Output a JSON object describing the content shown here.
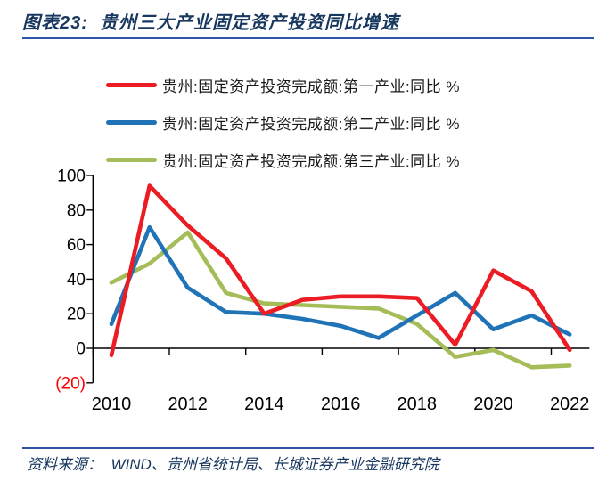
{
  "header": {
    "title": "图表23:  贵州三大产业固定资产投资同比增速"
  },
  "chart_data": {
    "type": "line",
    "title": "贵州三大产业固定资产投资同比增速",
    "x": [
      2010,
      2011,
      2012,
      2013,
      2014,
      2015,
      2016,
      2017,
      2018,
      2019,
      2020,
      2021,
      2022
    ],
    "x_tick_labels": [
      "2010",
      "2012",
      "2014",
      "2016",
      "2018",
      "2020",
      "2022"
    ],
    "ylim": [
      -20,
      100
    ],
    "y_ticks": [
      {
        "label": "100",
        "value": 100,
        "color": "#000000"
      },
      {
        "label": "80",
        "value": 80,
        "color": "#000000"
      },
      {
        "label": "60",
        "value": 60,
        "color": "#000000"
      },
      {
        "label": "40",
        "value": 40,
        "color": "#000000"
      },
      {
        "label": "20",
        "value": 20,
        "color": "#000000"
      },
      {
        "label": "0",
        "value": 0,
        "color": "#000000"
      },
      {
        "label": "(20)",
        "value": -20,
        "color": "#FF0000"
      }
    ],
    "grid": false,
    "legend_position": "top-left",
    "axis_color": "#000000",
    "series": [
      {
        "name": "贵州:固定资产投资完成额:第一产业:同比 %",
        "color": "#EB1C23",
        "values": [
          -4,
          94,
          71,
          52,
          20,
          28,
          30,
          30,
          29,
          2,
          45,
          33,
          -1
        ]
      },
      {
        "name": "贵州:固定资产投资完成额:第二产业:同比 %",
        "color": "#1F73B6",
        "values": [
          14,
          70,
          35,
          21,
          20,
          17,
          13,
          6,
          19,
          32,
          11,
          19,
          8
        ]
      },
      {
        "name": "贵州:固定资产投资完成额:第三产业:同比 %",
        "color": "#A4BD58",
        "values": [
          38,
          49,
          67,
          32,
          26,
          25,
          24,
          23,
          14,
          -5,
          -1,
          -11,
          -10
        ]
      }
    ]
  },
  "footer": {
    "source": "资料来源：  WIND、贵州省统计局、长城证券产业金融研究院"
  },
  "colors": {
    "title_navy": "#17375E",
    "rule_blue": "#2E55A5",
    "negative_tick_red": "#FF0000"
  }
}
